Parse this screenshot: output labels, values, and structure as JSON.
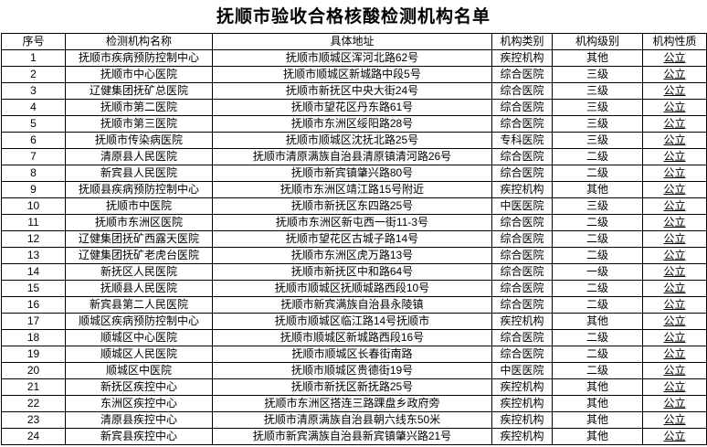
{
  "title": "抚顺市验收合格核酸检测机构名单",
  "colors": {
    "border": "#000000",
    "text": "#000000",
    "background": "#ffffff"
  },
  "table": {
    "headers": [
      "序号",
      "检测机构名称",
      "具体地址",
      "机构类别",
      "机构级别",
      "机构性质"
    ],
    "rows": [
      [
        "1",
        "抚顺市疾病预防控制中心",
        "抚顺市顺城区浑河北路62号",
        "疾控机构",
        "其他",
        "公立"
      ],
      [
        "2",
        "抚顺市中心医院",
        "抚顺市顺城区新城路中段5号",
        "综合医院",
        "三级",
        "公立"
      ],
      [
        "3",
        "辽健集团抚矿总医院",
        "抚顺市新抚区中央大街24号",
        "综合医院",
        "三级",
        "公立"
      ],
      [
        "4",
        "抚顺市第二医院",
        "抚顺市望花区丹东路61号",
        "综合医院",
        "三级",
        "公立"
      ],
      [
        "5",
        "抚顺市第三医院",
        "抚顺市东洲区绥阳路28号",
        "综合医院",
        "三级",
        "公立"
      ],
      [
        "6",
        "抚顺市传染病医院",
        "抚顺市顺城区沈抚北路25号",
        "专科医院",
        "三级",
        "公立"
      ],
      [
        "7",
        "清原县人民医院",
        "抚顺市清原满族自治县清原镇清河路26号",
        "综合医院",
        "二级",
        "公立"
      ],
      [
        "8",
        "新宾县人民医院",
        "抚顺市新宾镇肇兴路80号",
        "综合医院",
        "二级",
        "公立"
      ],
      [
        "9",
        "抚顺县疾病预防控制中心",
        "抚顺市东洲区靖江路15号附近",
        "疾控机构",
        "其他",
        "公立"
      ],
      [
        "10",
        "抚顺市中医院",
        "抚顺市新抚区东四路25号",
        "中医医院",
        "三级",
        "公立"
      ],
      [
        "11",
        "抚顺市东洲区医院",
        "抚顺市东洲区新屯西一街11-3号",
        "综合医院",
        "二级",
        "公立"
      ],
      [
        "12",
        "辽健集团抚矿西露天医院",
        "抚顺市望花区古城子路14号",
        "综合医院",
        "二级",
        "公立"
      ],
      [
        "13",
        "辽健集团抚矿老虎台医院",
        "抚顺市东洲区虎万路13号",
        "综合医院",
        "二级",
        "公立"
      ],
      [
        "14",
        "新抚区人民医院",
        "抚顺市新抚区中和路64号",
        "综合医院",
        "一级",
        "公立"
      ],
      [
        "15",
        "抚顺县人民医院",
        "抚顺市顺城区抚顺城路西段10号",
        "综合医院",
        "二级",
        "公立"
      ],
      [
        "16",
        "新宾县第二人民医院",
        "抚顺市新宾满族自治县永陵镇",
        "综合医院",
        "二级",
        "公立"
      ],
      [
        "17",
        "顺城区疾病预防控制中心",
        "抚顺市顺城区临江路14号抚顺市",
        "疾控机构",
        "其他",
        "公立"
      ],
      [
        "18",
        "顺城区中心医院",
        "抚顺市顺城区新城路西段16号",
        "综合医院",
        "二级",
        "公立"
      ],
      [
        "19",
        "顺城区人民医院",
        "抚顺市顺城区长春街南路",
        "综合医院",
        "二级",
        "公立"
      ],
      [
        "20",
        "顺城区中医院",
        "抚顺市顺城区贵德街19号",
        "中医医院",
        "二级",
        "公立"
      ],
      [
        "21",
        "新抚区疾控中心",
        "抚顺市新抚区新抚路25号",
        "疾控机构",
        "其他",
        "公立"
      ],
      [
        "22",
        "东洲区疾控中心",
        "抚顺市东洲区搭连三路踝盘乡政府旁",
        "疾控机构",
        "其他",
        "公立"
      ],
      [
        "23",
        "清原县疾控中心",
        "抚顺市清原满族自治县朝六线东50米",
        "疾控机构",
        "其他",
        "公立"
      ],
      [
        "24",
        "新宾县疾控中心",
        "抚顺市新宾满族自治县新宾镇肇兴路21号",
        "疾控机构",
        "其他",
        "公立"
      ]
    ]
  }
}
